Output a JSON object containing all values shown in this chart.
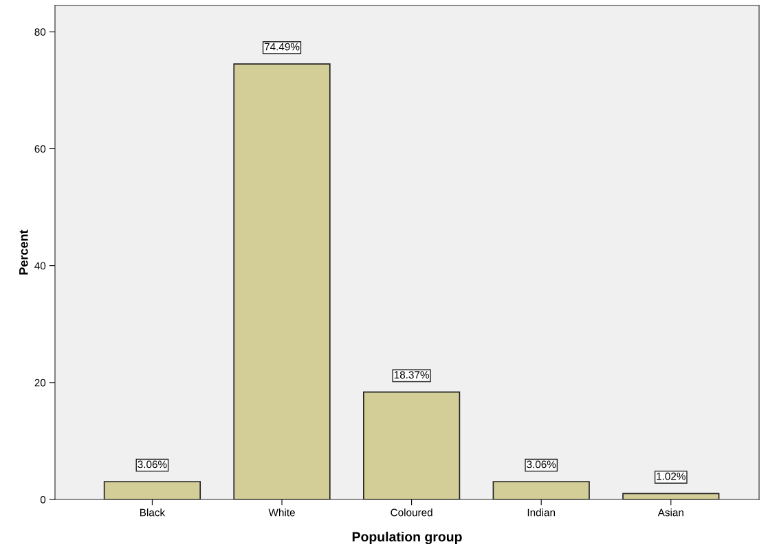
{
  "chart_data": {
    "type": "bar",
    "xlabel": "Population group",
    "ylabel": "Percent",
    "categories": [
      "Black",
      "White",
      "Coloured",
      "Indian",
      "Asian"
    ],
    "values": [
      3.06,
      74.49,
      18.37,
      3.06,
      1.02
    ],
    "value_labels": [
      "3.06%",
      "74.49%",
      "18.37%",
      "3.06%",
      "1.02%"
    ],
    "color": "#d3ce97",
    "ylim": [
      0,
      84.5
    ],
    "yticks": [
      0,
      20,
      40,
      60,
      80
    ],
    "grid": false,
    "legend": false
  }
}
